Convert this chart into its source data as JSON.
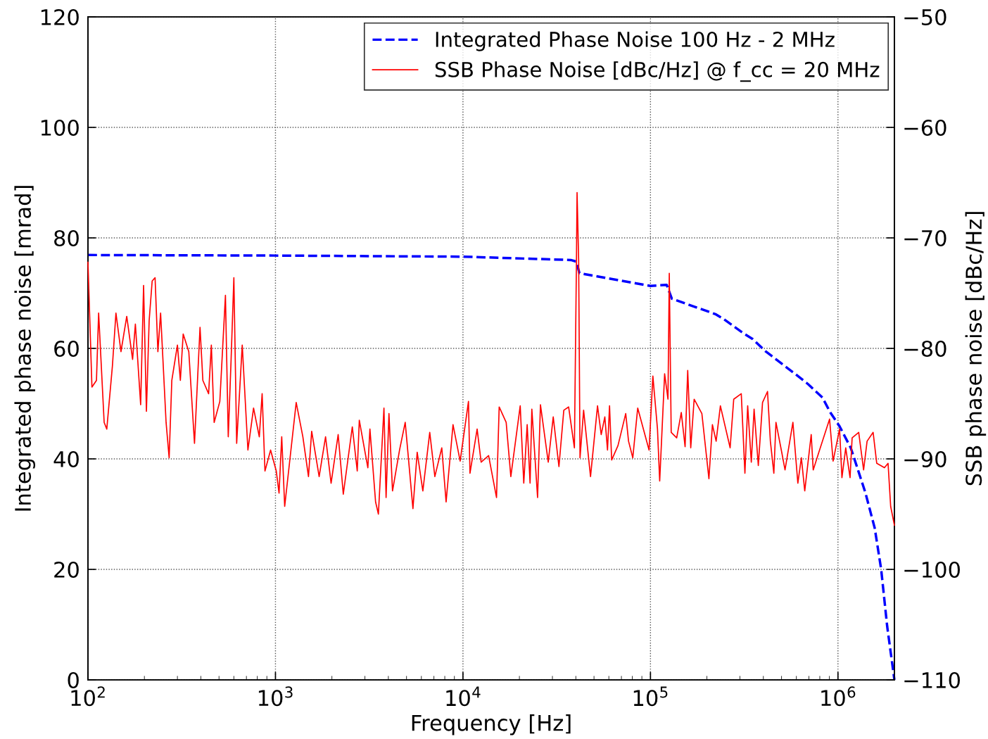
{
  "chart_data": {
    "type": "line",
    "xlabel": "Frequency [Hz]",
    "ylabel": "Integrated phase noise [mrad]",
    "y2label": "SSB phase noise [dBc/Hz]",
    "log": "x",
    "grid": true,
    "legend": "top right",
    "xlim": [
      100,
      2000000
    ],
    "xticks": [
      {
        "value": 100,
        "label": "10$^{2}$"
      },
      {
        "value": 1000,
        "label": "10$^{3}$"
      },
      {
        "value": 10000,
        "label": "10$^{4}$"
      },
      {
        "value": 100000,
        "label": "10$^{5}$"
      },
      {
        "value": 1000000,
        "label": "10$^{6}$"
      }
    ],
    "ylim": [
      0,
      120
    ],
    "yticks": [
      0,
      20,
      40,
      60,
      80,
      100,
      120
    ],
    "y2lim": [
      -110,
      -50
    ],
    "y2ticks": [
      -110,
      -100,
      -90,
      -80,
      -70,
      -60,
      -50
    ],
    "series": [
      {
        "name": "Integrated Phase Noise 100 Hz - 2 MHz",
        "color": "#0000ff",
        "line_style": "dashed",
        "axis": "y",
        "x": [
          100,
          1000,
          10000,
          37600,
          40300,
          41800,
          100000,
          122000,
          130000,
          222000,
          246000,
          311000,
          351000,
          410000,
          590000,
          689000,
          827000,
          910000,
          1020000,
          1170000,
          1400000,
          1570000,
          1700000,
          1830000,
          2000000
        ],
        "values": [
          76.9,
          76.8,
          76.6,
          76.0,
          75.7,
          73.6,
          71.3,
          71.5,
          69.0,
          66.2,
          65.3,
          62.8,
          61.7,
          59.5,
          55.4,
          53.6,
          51.1,
          48.4,
          45.9,
          42.0,
          33.9,
          27.5,
          20.0,
          9.7,
          0
        ]
      },
      {
        "name": "SSB Phase Noise [dBc/Hz] @ f_cc = 20 MHz",
        "color": "#ff0000",
        "line_style": "solid",
        "axis": "y2",
        "x": [
          100,
          103,
          105,
          111,
          114,
          122,
          126,
          135,
          141,
          150,
          161,
          173,
          179,
          191,
          198,
          205,
          212,
          220,
          228,
          236,
          244,
          261,
          271,
          280,
          300,
          311,
          322,
          345,
          370,
          396,
          410,
          440,
          455,
          471,
          505,
          541,
          560,
          580,
          600,
          621,
          665,
          713,
          764,
          820,
          849,
          879,
          942,
          1010,
          1045,
          1080,
          1120,
          1290,
          1400,
          1500,
          1560,
          1710,
          1850,
          1980,
          2160,
          2300,
          2570,
          2730,
          2800,
          3110,
          3190,
          3420,
          3540,
          3790,
          3890,
          4030,
          4210,
          4590,
          4920,
          5410,
          5700,
          6110,
          6650,
          7080,
          7710,
          8130,
          8850,
          9660,
          10700,
          10900,
          11900,
          12500,
          13700,
          15100,
          15600,
          17000,
          18000,
          20200,
          21100,
          22000,
          22800,
          23300,
          25000,
          25900,
          28500,
          30300,
          32500,
          34500,
          36600,
          39300,
          40300,
          40600,
          41400,
          42100,
          44000,
          47900,
          52200,
          54600,
          57100,
          59000,
          60500,
          62100,
          67100,
          73800,
          76400,
          80500,
          85500,
          98300,
          103000,
          109000,
          112000,
          119000,
          124000,
          126000,
          129000,
          138000,
          146000,
          153000,
          158000,
          164000,
          171000,
          188000,
          205000,
          214000,
          224000,
          236000,
          266000,
          278000,
          305000,
          319000,
          330000,
          345000,
          357000,
          376000,
          396000,
          421000,
          436000,
          455000,
          467000,
          500000,
          522000,
          575000,
          611000,
          638000,
          665000,
          720000,
          738000,
          791000,
          902000,
          942000,
          1020000,
          1050000,
          1100000,
          1160000,
          1190000,
          1290000,
          1370000,
          1430000,
          1540000,
          1610000,
          1770000,
          1850000,
          1910000,
          2000000
        ],
        "values": [
          -72.2,
          -79.0,
          -83.5,
          -82.9,
          -76.8,
          -86.7,
          -87.3,
          -81.6,
          -76.8,
          -80.3,
          -77.1,
          -81.0,
          -77.8,
          -85.1,
          -74.3,
          -85.7,
          -77.5,
          -73.9,
          -73.6,
          -80.3,
          -76.8,
          -86.7,
          -89.9,
          -82.9,
          -79.7,
          -82.9,
          -78.7,
          -80.3,
          -88.6,
          -78.1,
          -82.9,
          -84.1,
          -79.7,
          -86.7,
          -84.8,
          -75.2,
          -88.0,
          -81.0,
          -73.6,
          -88.6,
          -79.7,
          -89.2,
          -85.4,
          -88.0,
          -84.1,
          -91.1,
          -89.2,
          -91.1,
          -93.1,
          -88.0,
          -94.3,
          -84.9,
          -88.0,
          -91.6,
          -87.5,
          -91.6,
          -88.0,
          -92.2,
          -87.8,
          -93.2,
          -87.1,
          -91.1,
          -86.5,
          -90.8,
          -87.3,
          -93.9,
          -95.0,
          -85.4,
          -93.5,
          -85.9,
          -92.9,
          -89.2,
          -86.7,
          -94.5,
          -89.4,
          -92.9,
          -87.6,
          -91.6,
          -89.0,
          -93.9,
          -86.9,
          -90.2,
          -84.8,
          -91.3,
          -87.3,
          -90.3,
          -89.7,
          -93.5,
          -85.3,
          -86.7,
          -91.6,
          -85.2,
          -92.2,
          -86.9,
          -92.2,
          -85.5,
          -93.5,
          -85.1,
          -90.3,
          -86.2,
          -90.7,
          -85.6,
          -85.3,
          -89.0,
          -72.0,
          -65.9,
          -72.0,
          -89.9,
          -85.6,
          -91.6,
          -85.2,
          -87.8,
          -86.2,
          -89.2,
          -85.2,
          -90.1,
          -88.8,
          -85.9,
          -88.4,
          -89.9,
          -85.4,
          -89.2,
          -82.5,
          -87.3,
          -92.0,
          -82.3,
          -84.6,
          -73.2,
          -87.6,
          -88.1,
          -85.8,
          -88.9,
          -82.0,
          -89.0,
          -84.6,
          -85.9,
          -91.8,
          -86.9,
          -88.4,
          -85.2,
          -89.0,
          -84.6,
          -84.1,
          -91.3,
          -85.2,
          -90.3,
          -85.5,
          -90.6,
          -84.9,
          -83.9,
          -88.4,
          -91.3,
          -86.7,
          -89.3,
          -91.0,
          -86.7,
          -92.2,
          -89.9,
          -92.9,
          -87.8,
          -91.0,
          -89.4,
          -86.4,
          -90.2,
          -87.3,
          -91.7,
          -89.0,
          -91.7,
          -88.1,
          -87.6,
          -91.0,
          -88.4,
          -87.6,
          -90.4,
          -90.8,
          -90.4,
          -94.3,
          -96.0
        ]
      }
    ]
  }
}
